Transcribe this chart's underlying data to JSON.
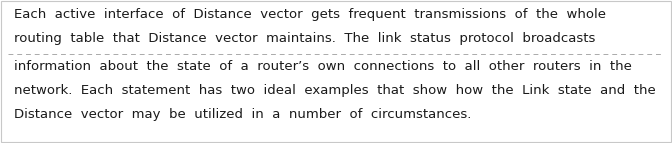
{
  "background_color": "#ffffff",
  "border_color": "#c8c8c8",
  "divider_color": "#aaaaaa",
  "text_color": "#1a1a1a",
  "font_size": 9.5,
  "paragraph1": [
    "Each  active  interface  of  Distance  vector  gets  frequent  transmissions  of  the  whole",
    "routing  table  that  Distance  vector  maintains.  The  link  status  protocol  broadcasts"
  ],
  "paragraph2": [
    "information  about  the  state  of  a  router’s  own  connections  to  all  other  routers  in  the",
    "network.  Each  statement  has  two  ideal  examples  that  show  how  the  Link  state  and  the",
    "Distance  vector  may  be  utilized  in  a  number  of  circumstances."
  ]
}
